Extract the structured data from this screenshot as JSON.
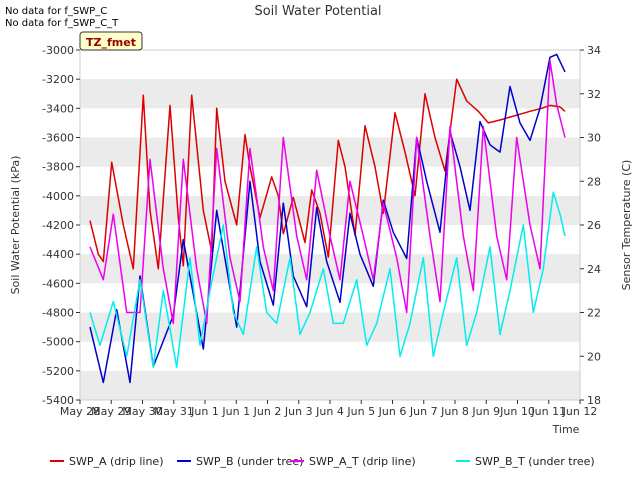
{
  "notes": [
    "No data for f_SWP_C",
    "No data for f_SWP_C_T"
  ],
  "badge": "TZ_fmet",
  "colors": {
    "swp_a": "#dd0000",
    "swp_b": "#0000cc",
    "swp_a_t": "#ee00ee",
    "swp_b_t": "#00eeee",
    "band": "#ebebeb",
    "badge_fill": "#ffffcc",
    "badge_text": "#990000"
  },
  "chart_data": {
    "type": "line",
    "title": "Soil Water Potential",
    "xlabel": "Time",
    "ylabel": "Soil Water Potential (kPa)",
    "y2label": "Sensor Temperature (C)",
    "xlim": [
      0,
      15
    ],
    "ylim": [
      -5400,
      -3000
    ],
    "y2lim": [
      18,
      34
    ],
    "x_tick_labels": [
      "May 28",
      "May 29",
      "May 30",
      "May 31",
      "Jun 1",
      "Jun 1",
      "Jun 2",
      "Jun 3",
      "Jun 4",
      "Jun 5",
      "Jun 6",
      "Jun 7",
      "Jun 8",
      "Jun 9",
      "Jun 10",
      "Jun 11",
      "Jun 12"
    ],
    "y_ticks": [
      -5400,
      -5200,
      -5000,
      -4800,
      -4600,
      -4400,
      -4200,
      -4000,
      -3800,
      -3600,
      -3400,
      -3200,
      -3000
    ],
    "y2_ticks": [
      18,
      20,
      22,
      24,
      26,
      28,
      30,
      32,
      34
    ],
    "legend_position": "bottom",
    "series": [
      {
        "name": "SWP_A (drip line)",
        "axis": "left",
        "x": [
          0.3,
          0.55,
          0.7,
          0.95,
          1.3,
          1.6,
          1.9,
          2.1,
          2.35,
          2.7,
          2.95,
          3.1,
          3.35,
          3.7,
          3.95,
          4.1,
          4.35,
          4.7,
          4.95,
          5.1,
          5.4,
          5.75,
          5.95,
          6.1,
          6.4,
          6.75,
          6.95,
          7.2,
          7.45,
          7.75,
          7.95,
          8.25,
          8.55,
          8.85,
          9.1,
          9.45,
          9.75,
          10.05,
          10.35,
          10.65,
          10.95,
          11.3,
          11.6,
          11.95,
          12.25,
          12.6,
          12.9,
          13.2,
          13.5,
          13.85,
          14.1,
          14.4,
          14.55
        ],
        "values": [
          -4170,
          -4400,
          -4450,
          -3770,
          -4200,
          -4500,
          -3310,
          -4100,
          -4500,
          -3380,
          -4150,
          -4480,
          -3310,
          -4100,
          -4380,
          -3400,
          -3900,
          -4200,
          -3580,
          -3800,
          -4150,
          -3870,
          -4000,
          -4260,
          -4010,
          -4320,
          -3960,
          -4120,
          -4420,
          -3620,
          -3800,
          -4270,
          -3520,
          -3800,
          -4120,
          -3430,
          -3700,
          -4000,
          -3300,
          -3600,
          -3830,
          -3200,
          -3350,
          -3420,
          -3500,
          -3480,
          -3460,
          -3440,
          -3420,
          -3400,
          -3380,
          -3390,
          -3420
        ]
      },
      {
        "name": "SWP_B (under tree)",
        "axis": "left",
        "x": [
          0.3,
          0.7,
          1.1,
          1.5,
          1.8,
          2.2,
          2.8,
          3.1,
          3.7,
          4.1,
          4.7,
          5.1,
          5.4,
          5.8,
          6.1,
          6.4,
          6.8,
          7.1,
          7.4,
          7.8,
          8.1,
          8.4,
          8.8,
          9.1,
          9.4,
          9.8,
          10.1,
          10.4,
          10.8,
          11.1,
          11.4,
          11.7,
          12.0,
          12.3,
          12.6,
          12.9,
          13.2,
          13.5,
          13.8,
          14.1,
          14.3,
          14.55
        ],
        "values": [
          -4900,
          -5280,
          -4780,
          -5280,
          -4550,
          -5170,
          -4820,
          -4300,
          -5050,
          -4100,
          -4900,
          -3900,
          -4450,
          -4750,
          -4050,
          -4550,
          -4760,
          -4080,
          -4450,
          -4730,
          -4120,
          -4400,
          -4620,
          -4030,
          -4250,
          -4430,
          -3600,
          -3900,
          -4250,
          -3560,
          -3800,
          -4100,
          -3490,
          -3650,
          -3700,
          -3250,
          -3500,
          -3620,
          -3400,
          -3050,
          -3030,
          -3150
        ]
      },
      {
        "name": "SWP_A_T (drip line)",
        "axis": "right",
        "x": [
          0.3,
          0.7,
          1.0,
          1.4,
          1.8,
          2.1,
          2.5,
          2.8,
          3.1,
          3.5,
          3.8,
          4.1,
          4.5,
          4.8,
          5.1,
          5.5,
          5.8,
          6.1,
          6.5,
          6.8,
          7.1,
          7.5,
          7.8,
          8.1,
          8.5,
          8.8,
          9.1,
          9.5,
          9.8,
          10.1,
          10.5,
          10.8,
          11.1,
          11.5,
          11.8,
          12.1,
          12.5,
          12.8,
          13.1,
          13.5,
          13.8,
          14.1,
          14.3,
          14.55
        ],
        "values": [
          25.0,
          23.5,
          26.5,
          22.0,
          22.0,
          29.0,
          24.0,
          21.5,
          29.0,
          24.0,
          21.5,
          29.5,
          24.5,
          22.5,
          29.5,
          25.0,
          23.0,
          30.0,
          25.5,
          23.5,
          28.5,
          25.5,
          23.5,
          28.0,
          25.5,
          23.5,
          27.0,
          24.5,
          22.0,
          30.0,
          25.5,
          22.5,
          30.5,
          25.5,
          23.0,
          30.5,
          25.5,
          23.5,
          30.0,
          26.0,
          24.0,
          33.5,
          31.5,
          30.0
        ]
      },
      {
        "name": "SWP_B_T (under tree)",
        "axis": "right",
        "x": [
          0.3,
          0.6,
          1.0,
          1.4,
          1.8,
          2.2,
          2.5,
          2.9,
          3.3,
          3.6,
          3.9,
          4.3,
          4.6,
          4.9,
          5.3,
          5.6,
          5.9,
          6.3,
          6.6,
          6.9,
          7.3,
          7.6,
          7.9,
          8.3,
          8.6,
          8.9,
          9.3,
          9.6,
          9.9,
          10.3,
          10.6,
          10.9,
          11.3,
          11.6,
          11.9,
          12.3,
          12.6,
          12.9,
          13.3,
          13.6,
          13.9,
          14.2,
          14.4,
          14.55
        ],
        "values": [
          22.0,
          20.5,
          22.5,
          20.0,
          23.5,
          19.5,
          23.0,
          19.5,
          24.5,
          20.5,
          23.0,
          26.0,
          22.0,
          21.0,
          25.0,
          22.0,
          21.5,
          24.5,
          21.0,
          22.0,
          24.0,
          21.5,
          21.5,
          23.5,
          20.5,
          21.5,
          24.0,
          20.0,
          21.5,
          24.5,
          20.0,
          22.0,
          24.5,
          20.5,
          22.0,
          25.0,
          21.0,
          23.0,
          26.0,
          22.0,
          24.0,
          27.5,
          26.5,
          25.5
        ]
      }
    ]
  }
}
